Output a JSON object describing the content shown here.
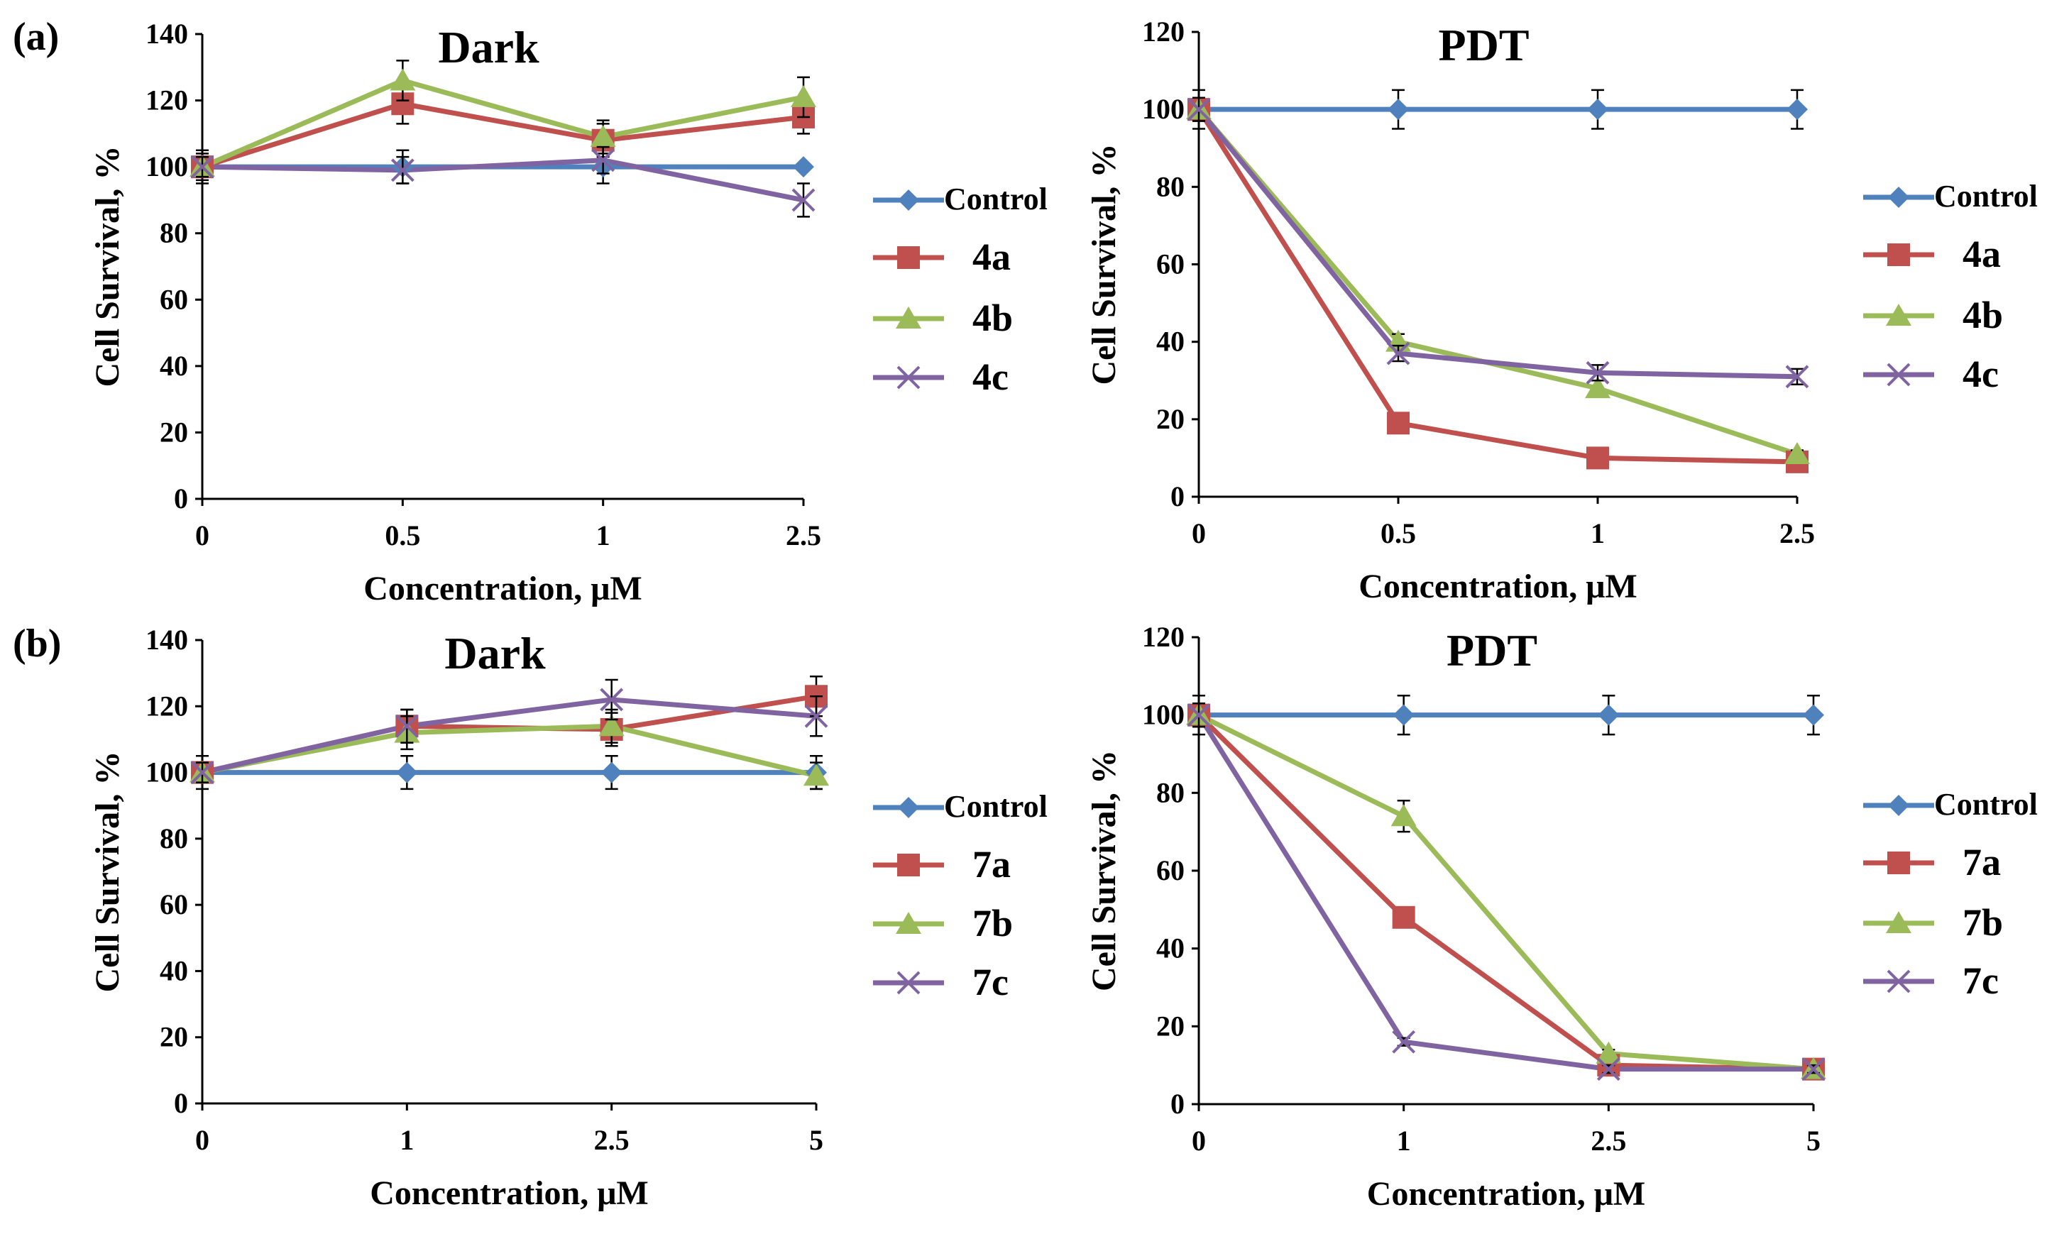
{
  "panel_labels": [
    "(a)",
    "(b)"
  ],
  "colors": {
    "Control": "#4f81bd",
    "series2": "#c0504d",
    "series3": "#9bbb59",
    "series4": "#8064a2"
  },
  "chart_data": [
    {
      "type": "line",
      "title": "Dark",
      "xlabel": "Concentration, μM",
      "ylabel": "Cell Survival, %",
      "categories": [
        "0",
        "0.5",
        "1",
        "2.5"
      ],
      "ylim": [
        0,
        140
      ],
      "yticks": [
        "0",
        "20",
        "40",
        "60",
        "80",
        "100",
        "120",
        "140"
      ],
      "series": [
        {
          "name": "Control",
          "marker": "diamond",
          "color": "#4f81bd",
          "values": [
            100,
            100,
            100,
            100
          ],
          "errors": [
            5,
            5,
            5,
            0
          ]
        },
        {
          "name": "4a",
          "marker": "square",
          "color": "#c0504d",
          "values": [
            100,
            119,
            108,
            115
          ],
          "errors": [
            4,
            6,
            5,
            5
          ]
        },
        {
          "name": "4b",
          "marker": "triangle",
          "color": "#9bbb59",
          "values": [
            100,
            126,
            109,
            121
          ],
          "errors": [
            3,
            6,
            5,
            6
          ]
        },
        {
          "name": "4c",
          "marker": "x",
          "color": "#8064a2",
          "values": [
            100,
            99,
            102,
            90
          ],
          "errors": [
            3,
            4,
            4,
            5
          ]
        }
      ]
    },
    {
      "type": "line",
      "title": "PDT",
      "xlabel": "Concentration, μM",
      "ylabel": "Cell Survival, %",
      "categories": [
        "0",
        "0.5",
        "1",
        "2.5"
      ],
      "ylim": [
        0,
        120
      ],
      "yticks": [
        "0",
        "20",
        "40",
        "60",
        "80",
        "100",
        "120"
      ],
      "series": [
        {
          "name": "Control",
          "marker": "diamond",
          "color": "#4f81bd",
          "values": [
            100,
            100,
            100,
            100
          ],
          "errors": [
            5,
            5,
            5,
            5
          ]
        },
        {
          "name": "4a",
          "marker": "square",
          "color": "#c0504d",
          "values": [
            100,
            19,
            10,
            9
          ],
          "errors": [
            3,
            1,
            1,
            1
          ]
        },
        {
          "name": "4b",
          "marker": "triangle",
          "color": "#9bbb59",
          "values": [
            100,
            40,
            28,
            11
          ],
          "errors": [
            3,
            2,
            2,
            1
          ]
        },
        {
          "name": "4c",
          "marker": "x",
          "color": "#8064a2",
          "values": [
            100,
            37,
            32,
            31
          ],
          "errors": [
            3,
            2,
            2,
            2
          ]
        }
      ]
    },
    {
      "type": "line",
      "title": "Dark",
      "xlabel": "Concentration, μM",
      "ylabel": "Cell Survival, %",
      "categories": [
        "0",
        "1",
        "2.5",
        "5"
      ],
      "ylim": [
        0,
        140
      ],
      "yticks": [
        "0",
        "20",
        "40",
        "60",
        "80",
        "100",
        "120",
        "140"
      ],
      "series": [
        {
          "name": "Control",
          "marker": "diamond",
          "color": "#4f81bd",
          "values": [
            100,
            100,
            100,
            100
          ],
          "errors": [
            5,
            5,
            5,
            5
          ]
        },
        {
          "name": "7a",
          "marker": "square",
          "color": "#c0504d",
          "values": [
            100,
            114,
            113,
            123
          ],
          "errors": [
            3,
            5,
            5,
            6
          ]
        },
        {
          "name": "7b",
          "marker": "triangle",
          "color": "#9bbb59",
          "values": [
            100,
            112,
            114,
            99
          ],
          "errors": [
            3,
            5,
            5,
            4
          ]
        },
        {
          "name": "7c",
          "marker": "x",
          "color": "#8064a2",
          "values": [
            100,
            114,
            122,
            117
          ],
          "errors": [
            3,
            5,
            6,
            6
          ]
        }
      ]
    },
    {
      "type": "line",
      "title": "PDT",
      "xlabel": "Concentration, μM",
      "ylabel": "Cell Survival, %",
      "categories": [
        "0",
        "1",
        "2.5",
        "5"
      ],
      "ylim": [
        0,
        120
      ],
      "yticks": [
        "0",
        "20",
        "40",
        "60",
        "80",
        "100",
        "120"
      ],
      "series": [
        {
          "name": "Control",
          "marker": "diamond",
          "color": "#4f81bd",
          "values": [
            100,
            100,
            100,
            100
          ],
          "errors": [
            5,
            5,
            5,
            5
          ]
        },
        {
          "name": "7a",
          "marker": "square",
          "color": "#c0504d",
          "values": [
            100,
            48,
            10,
            9
          ],
          "errors": [
            3,
            2,
            1,
            1
          ]
        },
        {
          "name": "7b",
          "marker": "triangle",
          "color": "#9bbb59",
          "values": [
            100,
            74,
            13,
            9
          ],
          "errors": [
            3,
            4,
            1,
            1
          ]
        },
        {
          "name": "7c",
          "marker": "x",
          "color": "#8064a2",
          "values": [
            100,
            16,
            9,
            9
          ],
          "errors": [
            3,
            1,
            1,
            1
          ]
        }
      ]
    }
  ]
}
